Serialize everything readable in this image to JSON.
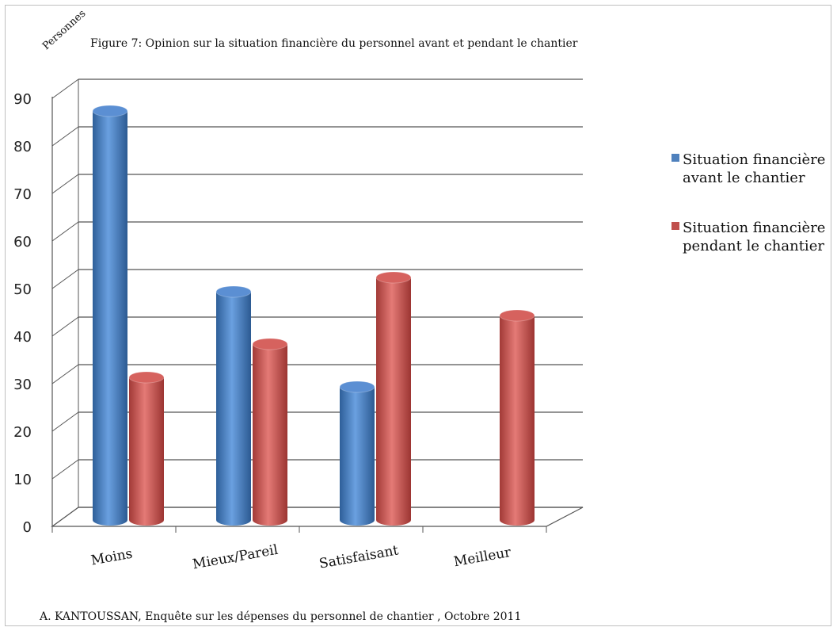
{
  "chart_data": {
    "type": "bar",
    "title": "Figure 7: Opinion sur la situation financière du personnel avant et pendant le chantier",
    "ylabel": "Personnes",
    "xlabel": "",
    "categories": [
      "Moins",
      "Mieux/Pareil",
      "Satisfaisant",
      "Meilleur"
    ],
    "series": [
      {
        "name": "Situation financière avant le chantier",
        "values": [
          87,
          49,
          29,
          0
        ],
        "color": "#4f81bd"
      },
      {
        "name": "Situation financière pendant le chantier",
        "values": [
          31,
          38,
          52,
          44
        ],
        "color": "#c0504d"
      }
    ],
    "ylim": [
      0,
      90
    ],
    "yticks": [
      0,
      10,
      20,
      30,
      40,
      50,
      60,
      70,
      80,
      90
    ],
    "grid": true,
    "legend_position": "right",
    "style": "3d-cylinder"
  },
  "legend": {
    "item0_line1": "Situation financière",
    "item0_line2": "avant le chantier",
    "item1_line1": "Situation financière",
    "item1_line2": "pendant le chantier"
  },
  "source": "A. KANTOUSSAN, Enquête sur les dépenses du personnel de chantier , Octobre 2011"
}
